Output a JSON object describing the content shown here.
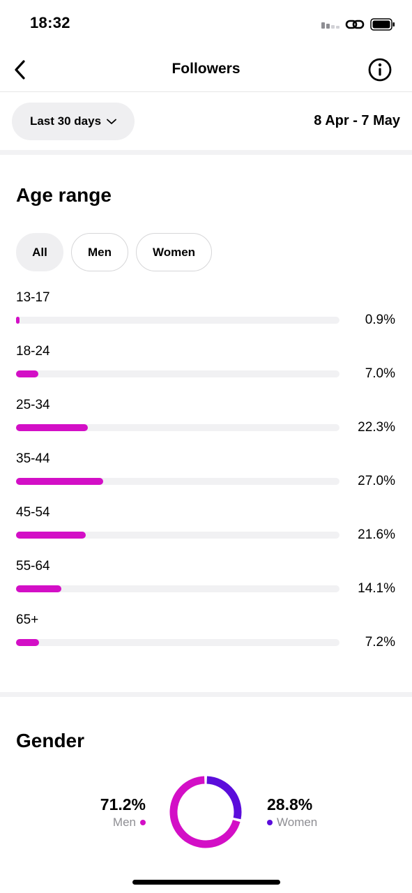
{
  "status_bar": {
    "time": "18:32",
    "signal_icon": "signal-bars-icon",
    "link_icon": "link-icon",
    "battery_icon": "battery-icon"
  },
  "nav": {
    "title": "Followers",
    "back_icon": "chevron-left-icon",
    "info_icon": "info-circle-icon"
  },
  "filters": {
    "range_label": "Last 30 days",
    "range_icon": "chevron-down-icon",
    "date_range": "8 Apr - 7 May"
  },
  "age_section": {
    "title": "Age range",
    "tabs": [
      {
        "label": "All",
        "active": true
      },
      {
        "label": "Men",
        "active": false
      },
      {
        "label": "Women",
        "active": false
      }
    ],
    "rows": [
      {
        "label": "13-17",
        "value": "0.9%",
        "percent": 0.9
      },
      {
        "label": "18-24",
        "value": "7.0%",
        "percent": 7.0
      },
      {
        "label": "25-34",
        "value": "22.3%",
        "percent": 22.3
      },
      {
        "label": "35-44",
        "value": "27.0%",
        "percent": 27.0
      },
      {
        "label": "45-54",
        "value": "21.6%",
        "percent": 21.6
      },
      {
        "label": "55-64",
        "value": "14.1%",
        "percent": 14.1
      },
      {
        "label": "65+",
        "value": "7.2%",
        "percent": 7.2
      }
    ],
    "bar_color": "#d30fc6"
  },
  "gender_section": {
    "title": "Gender",
    "men": {
      "value": "71.2%",
      "label": "Men",
      "percent": 71.2,
      "color": "#d30fc6"
    },
    "women": {
      "value": "28.8%",
      "label": "Women",
      "percent": 28.8,
      "color": "#5b0ddb"
    }
  }
}
